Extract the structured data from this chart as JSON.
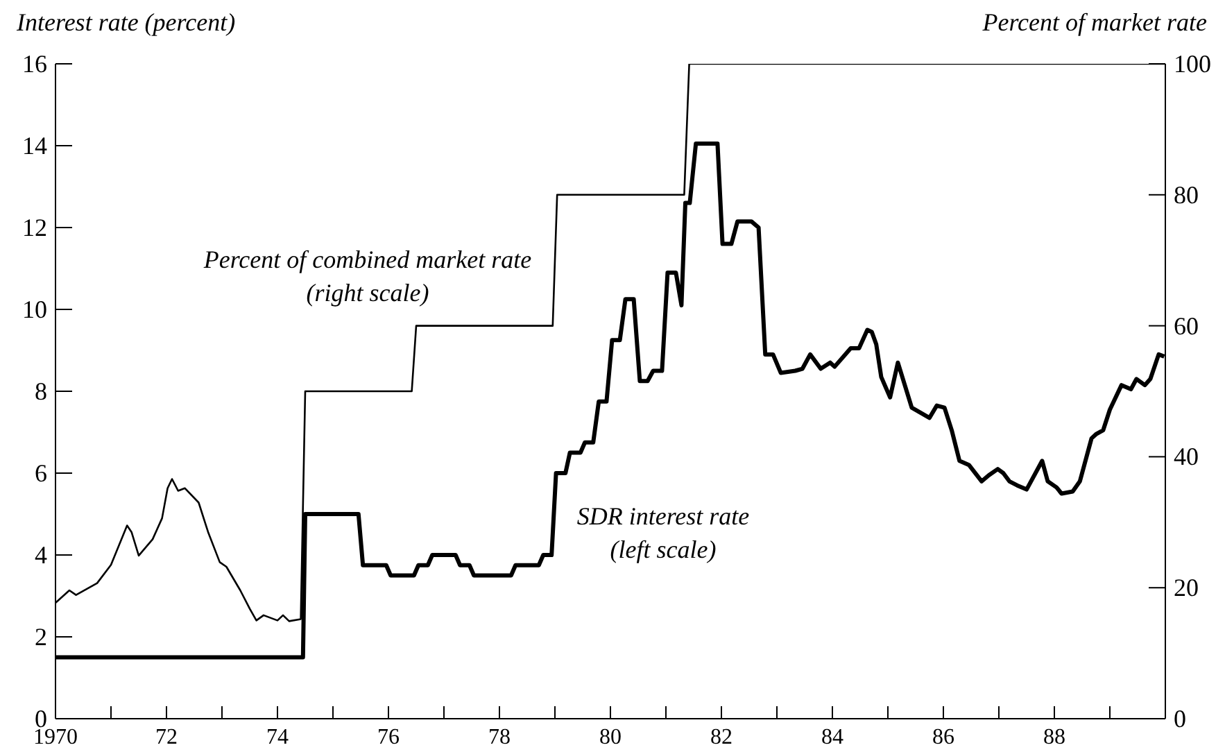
{
  "chart_data": {
    "type": "line",
    "ylabel": "Interest rate (percent)",
    "y2label": "Percent of market rate",
    "xlim": [
      1970,
      1990
    ],
    "xticks": [
      1970,
      {
        "value": 1971,
        "label": null
      },
      {
        "value": 1972,
        "label": "72"
      },
      {
        "value": 1973,
        "label": null
      },
      {
        "value": 1974,
        "label": "74"
      },
      {
        "value": 1975,
        "label": null
      },
      {
        "value": 1976,
        "label": "76"
      },
      {
        "value": 1977,
        "label": null
      },
      {
        "value": 1978,
        "label": "78"
      },
      {
        "value": 1979,
        "label": null
      },
      {
        "value": 1980,
        "label": "80"
      },
      {
        "value": 1981,
        "label": null
      },
      {
        "value": 1982,
        "label": "82"
      },
      {
        "value": 1983,
        "label": null
      },
      {
        "value": 1984,
        "label": "84"
      },
      {
        "value": 1985,
        "label": null
      },
      {
        "value": 1986,
        "label": "86"
      },
      {
        "value": 1987,
        "label": null
      },
      {
        "value": 1988,
        "label": "88"
      },
      {
        "value": 1989,
        "label": null
      }
    ],
    "ylim": [
      0,
      16
    ],
    "yticks": [
      0,
      2,
      4,
      6,
      8,
      10,
      12,
      14,
      16
    ],
    "y2lim": [
      0,
      100
    ],
    "y2ticks": [
      0,
      20,
      40,
      60,
      80,
      100
    ],
    "legend": false,
    "grid": false,
    "marker": "none",
    "line_style": "solid",
    "series": [
      {
        "name": "Percent of combined market rate (right scale)",
        "color": "#000000",
        "axis": "y2",
        "x": [
          1970,
          1970.25,
          1970.37,
          1970.75,
          1971,
          1971.29,
          1971.37,
          1971.5,
          1971.75,
          1971.92,
          1972.02,
          1972.1,
          1972.21,
          1972.33,
          1972.58,
          1972.75,
          1972.96,
          1973.08,
          1973.33,
          1973.5,
          1973.62,
          1973.75,
          1974,
          1974.1,
          1974.21,
          1974.42,
          1974.5,
          1976.42,
          1976.5,
          1978.96,
          1979.04,
          1981.33,
          1981.42,
          1990
        ],
        "values": [
          17.7,
          19.6,
          18.9,
          20.7,
          23.5,
          29.5,
          28.5,
          24.9,
          27.4,
          30.6,
          35.2,
          36.6,
          34.8,
          35.2,
          33,
          28.5,
          23.9,
          23.2,
          19.6,
          16.8,
          15,
          15.8,
          15,
          15.8,
          14.9,
          15.2,
          50,
          50,
          60,
          60,
          80,
          80,
          100,
          100
        ]
      },
      {
        "name": "SDR interest rate (left scale)",
        "color": "#000000",
        "x": [
          1970,
          1974.46,
          1974.5,
          1975.46,
          1975.54,
          1975.96,
          1976.04,
          1976.46,
          1976.54,
          1976.71,
          1976.79,
          1977.21,
          1977.29,
          1977.46,
          1977.54,
          1978.21,
          1978.29,
          1978.71,
          1978.79,
          1978.94,
          1979.02,
          1979.19,
          1979.27,
          1979.46,
          1979.54,
          1979.69,
          1979.79,
          1979.93,
          1980.03,
          1980.17,
          1980.27,
          1980.42,
          1980.53,
          1980.67,
          1980.77,
          1980.93,
          1981.03,
          1981.18,
          1981.28,
          1981.35,
          1981.43,
          1981.54,
          1981.93,
          1982.02,
          1982.18,
          1982.29,
          1982.54,
          1982.67,
          1982.79,
          1982.93,
          1983.07,
          1983.33,
          1983.46,
          1983.6,
          1983.79,
          1983.96,
          1984.04,
          1984.33,
          1984.48,
          1984.63,
          1984.71,
          1984.79,
          1984.88,
          1985.04,
          1985.18,
          1985.43,
          1985.75,
          1985.88,
          1986.02,
          1986.15,
          1986.29,
          1986.46,
          1986.69,
          1986.82,
          1986.98,
          1987.08,
          1987.19,
          1987.33,
          1987.5,
          1987.78,
          1987.88,
          1988.04,
          1988.13,
          1988.33,
          1988.46,
          1988.67,
          1988.75,
          1988.88,
          1989,
          1989.21,
          1989.38,
          1989.48,
          1989.63,
          1989.73,
          1989.88,
          1989.98
        ],
        "values": [
          1.5,
          1.5,
          5,
          5,
          3.75,
          3.75,
          3.5,
          3.5,
          3.75,
          3.75,
          4,
          4,
          3.75,
          3.75,
          3.5,
          3.5,
          3.75,
          3.75,
          4,
          4,
          6,
          6,
          6.5,
          6.5,
          6.75,
          6.75,
          7.75,
          7.75,
          9.25,
          9.25,
          10.25,
          10.25,
          8.25,
          8.25,
          8.5,
          8.5,
          10.9,
          10.9,
          10.1,
          12.6,
          12.6,
          14.05,
          14.05,
          11.6,
          11.6,
          12.15,
          12.15,
          12,
          8.9,
          8.9,
          8.45,
          8.5,
          8.55,
          8.9,
          8.55,
          8.7,
          8.6,
          9.05,
          9.05,
          9.5,
          9.45,
          9.15,
          8.35,
          7.85,
          8.7,
          7.6,
          7.35,
          7.65,
          7.6,
          7.05,
          6.3,
          6.2,
          5.8,
          5.95,
          6.1,
          6,
          5.8,
          5.7,
          5.6,
          6.3,
          5.8,
          5.65,
          5.5,
          5.55,
          5.8,
          6.85,
          6.95,
          7.05,
          7.55,
          8.15,
          8.05,
          8.3,
          8.15,
          8.3,
          8.9,
          8.85
        ]
      }
    ]
  }
}
